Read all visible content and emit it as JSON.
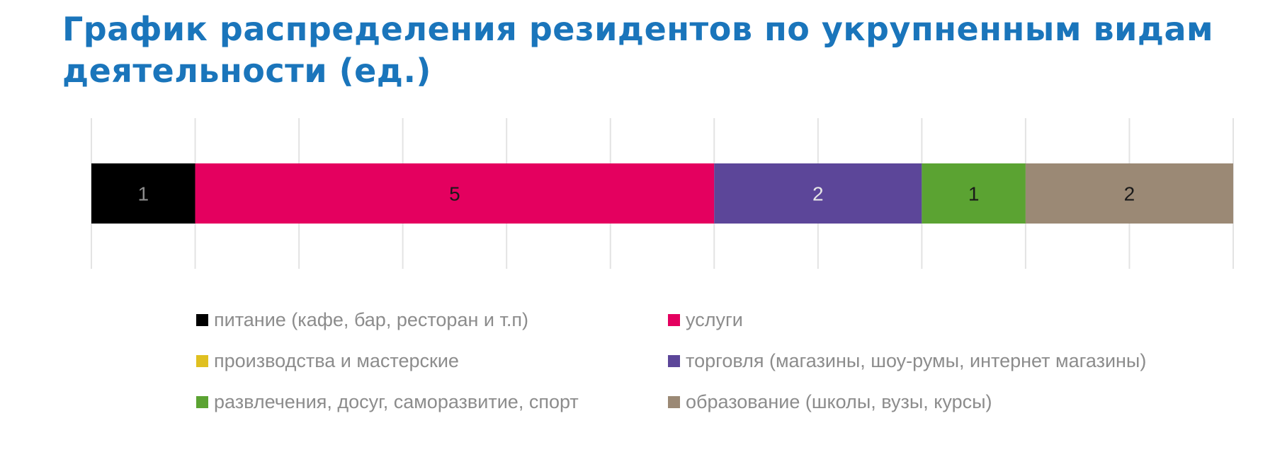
{
  "title": "График распределения резидентов по укрупненным видам деятельности (ед.)",
  "chart_data": {
    "type": "bar",
    "orientation": "horizontal",
    "stacked": true,
    "grid": true,
    "legend_position": "bottom",
    "xlim": [
      0,
      11
    ],
    "series": [
      {
        "name": "питание (кафе, бар, ресторан и т.п)",
        "value": 1,
        "color": "#000000",
        "label_color": "#8c8c8c"
      },
      {
        "name": "услуги",
        "value": 5,
        "color": "#e4005f",
        "label_color": "#1a1a1a"
      },
      {
        "name": "производства и мастерские",
        "value": 0,
        "color": "#e0c020",
        "label_color": "#1a1a1a"
      },
      {
        "name": "торговля (магазины, шоу-румы, интернет магазины)",
        "value": 2,
        "color": "#5c4699",
        "label_color": "#e6e6e6"
      },
      {
        "name": "развлечения, досуг, саморазвитие, спорт",
        "value": 1,
        "color": "#5ba332",
        "label_color": "#1a1a1a"
      },
      {
        "name": "образование (школы, вузы, курсы)",
        "value": 2,
        "color": "#9b8975",
        "label_color": "#1a1a1a"
      }
    ]
  }
}
